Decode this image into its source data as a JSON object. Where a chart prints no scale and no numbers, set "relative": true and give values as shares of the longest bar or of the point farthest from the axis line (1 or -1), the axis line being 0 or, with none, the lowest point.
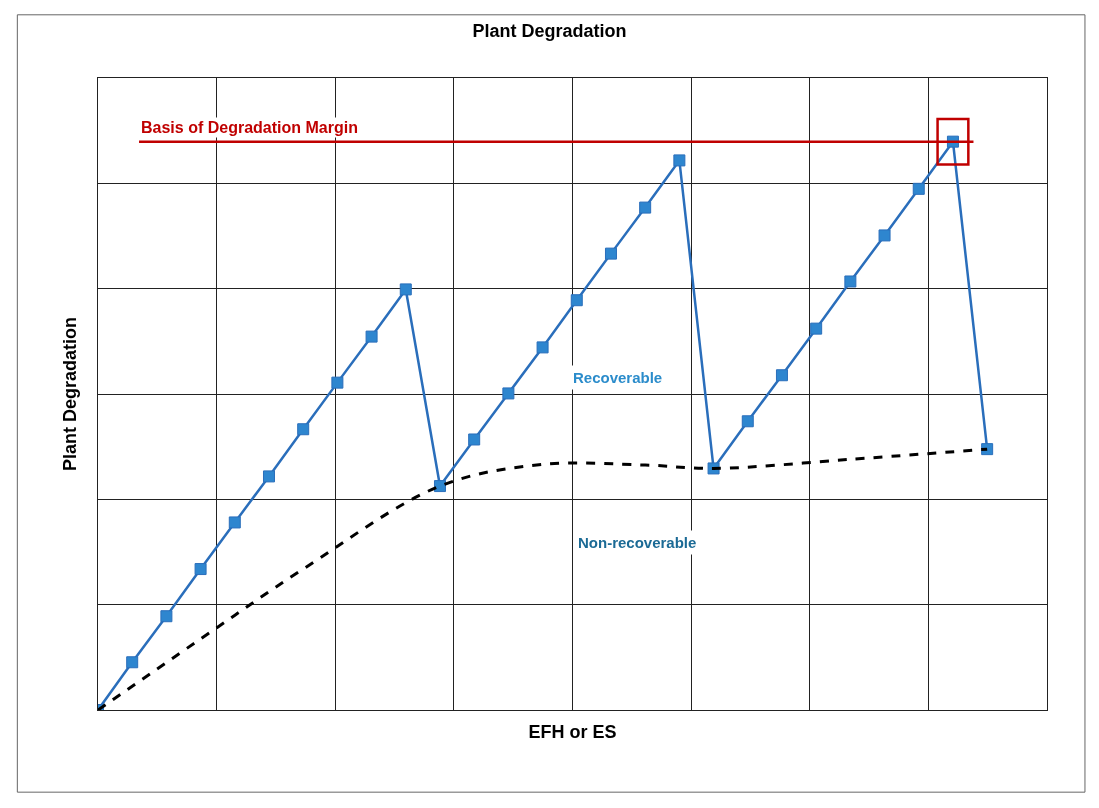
{
  "chart_data": {
    "type": "line",
    "title": "Plant Degradation",
    "xlabel": "EFH or ES",
    "ylabel": "Plant Degradation",
    "relative": true,
    "categories": [
      null,
      null,
      null,
      null,
      null,
      null,
      null,
      null,
      null,
      null,
      null,
      null,
      null,
      null,
      null,
      null,
      null,
      null,
      null,
      null,
      null,
      null,
      null,
      null,
      null,
      null,
      null
    ],
    "series": [
      {
        "color": "#2a6ebb",
        "marker": "square",
        "line_style": "solid",
        "values": [
          0,
          0.084,
          0.165,
          0.248,
          0.33,
          0.411,
          0.494,
          0.576,
          0.657,
          0.74,
          0.394,
          0.476,
          0.557,
          0.638,
          0.721,
          0.803,
          0.884,
          0.967,
          0.425,
          0.508,
          0.589,
          0.671,
          0.754,
          0.835,
          0.917,
          1,
          0.459
        ]
      },
      {
        "color": "#000000",
        "marker": "none",
        "line_style": "dashed",
        "values": [
          0,
          null,
          null,
          0.125,
          null,
          null,
          0.248,
          null,
          null,
          null,
          0.394,
          null,
          null,
          0.432,
          null,
          null,
          0.431,
          null,
          0.425,
          null,
          null,
          null,
          0.441,
          null,
          null,
          null,
          0.459
        ]
      }
    ],
    "ref_lines": [
      {
        "axis": "y",
        "value": 1,
        "label": "Basis of Degradation Margin",
        "color": "#c00000"
      }
    ],
    "annotations": [
      "Recoverable",
      "Non-recoverable"
    ],
    "grid": true
  }
}
